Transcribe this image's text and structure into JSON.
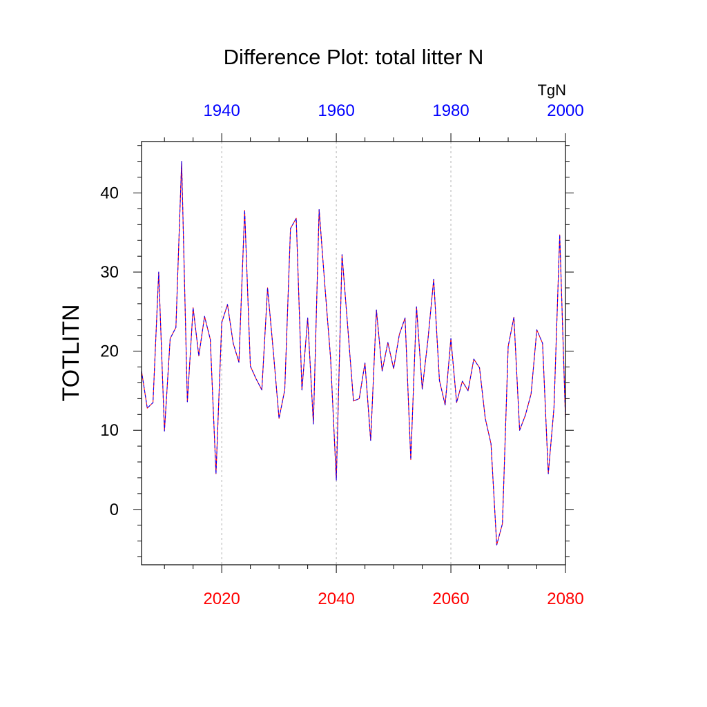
{
  "chart_data": {
    "type": "line",
    "title": "Difference Plot: total litter N",
    "ylabel": "TOTLITN",
    "units": "TgN",
    "xlim": [
      2006,
      2080
    ],
    "ylim": [
      -7,
      46.5
    ],
    "grid": "vertical-dashed",
    "bottom_axis": {
      "color": "#ff0000",
      "ticks": [
        2020,
        2040,
        2060,
        2080
      ],
      "tick_labels": [
        "2020",
        "2040",
        "2060",
        "2080"
      ]
    },
    "top_axis": {
      "color": "#0000ff",
      "ticks": [
        1940,
        1960,
        1980,
        2000
      ],
      "tick_labels": [
        "1940",
        "1960",
        "1980",
        "2000"
      ],
      "offset_years": 80
    },
    "y_ticks": [
      0,
      10,
      20,
      30,
      40
    ],
    "y_tick_labels": [
      "0",
      "10",
      "20",
      "30",
      "40"
    ],
    "colors": {
      "series_a": "#ff0000",
      "series_b": "#0000ff",
      "axis": "#000000",
      "grid": "#b3b3b3"
    },
    "x": [
      2006,
      2007,
      2008,
      2009,
      2010,
      2011,
      2012,
      2013,
      2014,
      2015,
      2016,
      2017,
      2018,
      2019,
      2020,
      2021,
      2022,
      2023,
      2024,
      2025,
      2026,
      2027,
      2028,
      2029,
      2030,
      2031,
      2032,
      2033,
      2034,
      2035,
      2036,
      2037,
      2038,
      2039,
      2040,
      2041,
      2042,
      2043,
      2044,
      2045,
      2046,
      2047,
      2048,
      2049,
      2050,
      2051,
      2052,
      2053,
      2054,
      2055,
      2056,
      2057,
      2058,
      2059,
      2060,
      2061,
      2062,
      2063,
      2064,
      2065,
      2066,
      2067,
      2068,
      2069,
      2070,
      2071,
      2072,
      2073,
      2074,
      2075,
      2076,
      2077,
      2078,
      2079,
      2080
    ],
    "series": [
      {
        "values": [
          17.5,
          12.8,
          13.5,
          30,
          9.9,
          21.6,
          23,
          44,
          13.6,
          25.5,
          19.4,
          24.4,
          21.5,
          4.5,
          23.6,
          25.9,
          21,
          18.6,
          37.8,
          18.1,
          16.5,
          15.1,
          28,
          20,
          11.5,
          15.1,
          35.5,
          36.8,
          15.1,
          24.2,
          10.8,
          37.9,
          28.3,
          19.1,
          3.7,
          32.2,
          23,
          13.7,
          14,
          18.5,
          8.7,
          25.2,
          17.5,
          21.1,
          17.8,
          22.1,
          24.2,
          6.3,
          25.6,
          15.2,
          21.5,
          29.1,
          16.3,
          13.2,
          21.6,
          13.5,
          16.2,
          15,
          19,
          17.9,
          11.5,
          8.3,
          -4.5,
          -1.8,
          20.6,
          24.3,
          10,
          11.9,
          14.6,
          22.7,
          21,
          4.5,
          12.9,
          34.7,
          11.5
        ]
      },
      {
        "values": [
          17.5,
          12.8,
          13.5,
          30,
          9.9,
          21.6,
          23,
          44,
          13.6,
          25.5,
          19.4,
          24.4,
          21.5,
          4.5,
          23.6,
          25.9,
          21,
          18.6,
          37.8,
          18.1,
          16.5,
          15.1,
          28,
          20,
          11.5,
          15.1,
          35.5,
          36.8,
          15.1,
          24.2,
          10.8,
          37.9,
          28.3,
          19.1,
          3.7,
          32.2,
          23,
          13.7,
          14,
          18.5,
          8.7,
          25.2,
          17.5,
          21.1,
          17.8,
          22.1,
          24.2,
          6.3,
          25.6,
          15.2,
          21.5,
          29.1,
          16.3,
          13.2,
          21.6,
          13.5,
          16.2,
          15,
          19,
          17.9,
          11.5,
          8.3,
          -4.5,
          -1.8,
          20.6,
          24.3,
          10,
          11.9,
          14.6,
          22.7,
          21,
          4.5,
          12.9,
          34.7,
          11.5
        ]
      }
    ]
  }
}
